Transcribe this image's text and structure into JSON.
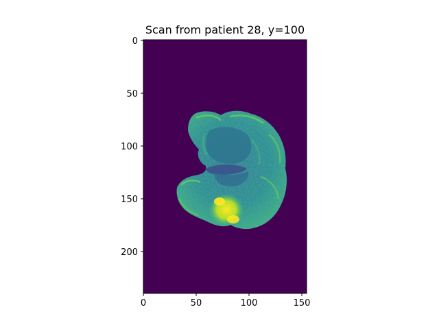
{
  "title": "Scan from patient 28, y=100",
  "colors": {
    "background": "#440154",
    "tissue_dark": "#3b528b",
    "tissue_mid": "#21918c",
    "tissue_light": "#5ec962",
    "tissue_bright": "#fde725"
  },
  "x_axis": {
    "range": [
      0,
      155
    ],
    "ticks": [
      0,
      50,
      100,
      150
    ],
    "tick_labels": [
      "0",
      "50",
      "100",
      "150"
    ]
  },
  "y_axis": {
    "range": [
      240,
      0
    ],
    "ticks": [
      0,
      50,
      100,
      150,
      200
    ],
    "tick_labels": [
      "0",
      "50",
      "100",
      "150",
      "200"
    ]
  }
}
